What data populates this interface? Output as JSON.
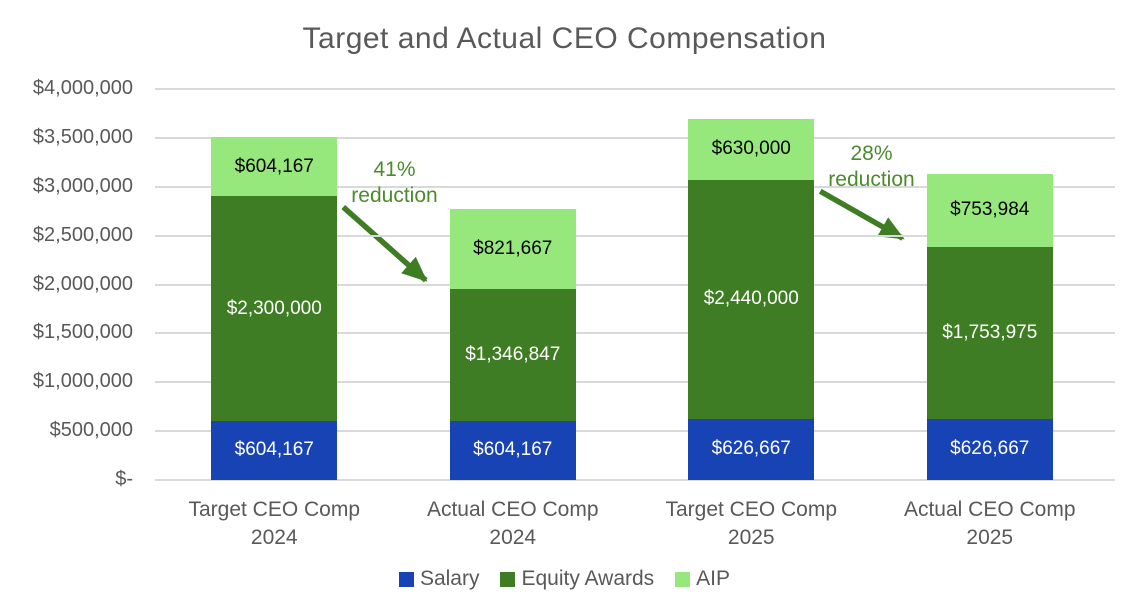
{
  "chart_data": {
    "type": "bar",
    "stacked": true,
    "title": "Target and Actual CEO Compensation",
    "categories": [
      {
        "lines": [
          "Target CEO Comp",
          "2024"
        ]
      },
      {
        "lines": [
          "Actual CEO Comp",
          "2024"
        ]
      },
      {
        "lines": [
          "Target CEO Comp",
          "2025"
        ]
      },
      {
        "lines": [
          "Actual CEO Comp",
          "2025"
        ]
      }
    ],
    "series": [
      {
        "name": "Salary",
        "color": "#1843B4",
        "label_color": "#FFFFFF",
        "values": [
          604167,
          604167,
          626667,
          626667
        ],
        "labels": [
          "$604,167",
          "$604,167",
          "$626,667",
          "$626,667"
        ]
      },
      {
        "name": "Equity Awards",
        "color": "#3E7D23",
        "label_color": "#FFFFFF",
        "values": [
          2300000,
          1346847,
          2440000,
          1753975
        ],
        "labels": [
          "$2,300,000",
          "$1,346,847",
          "$2,440,000",
          "$1,753,975"
        ]
      },
      {
        "name": "AIP",
        "color": "#97E87C",
        "label_color": "#000000",
        "values": [
          604167,
          821667,
          630000,
          753984
        ],
        "labels": [
          "$604,167",
          "$821,667",
          "$630,000",
          "$753,984"
        ]
      }
    ],
    "y_axis": {
      "min": 0,
      "max": 4000000,
      "tick_step": 500000,
      "tick_labels": [
        "$-",
        "$500,000",
        "$1,000,000",
        "$1,500,000",
        "$2,000,000",
        "$2,500,000",
        "$3,000,000",
        "$3,500,000",
        "$4,000,000"
      ]
    },
    "grid": true,
    "legend_position": "bottom",
    "annotations": [
      {
        "lines": [
          "41%",
          "reduction"
        ],
        "from_category": 0,
        "to_category": 1,
        "refers_to_series": "Equity Awards"
      },
      {
        "lines": [
          "28%",
          "reduction"
        ],
        "from_category": 2,
        "to_category": 3,
        "refers_to_series": "Equity Awards"
      }
    ]
  },
  "style": {
    "background": "#FFFFFF",
    "title_color": "#595959",
    "axis_text_color": "#595959",
    "gridline_color": "#D9D9D9",
    "annotation_text_color": "#4C8B2D",
    "arrow_color": "#3E7D23"
  }
}
